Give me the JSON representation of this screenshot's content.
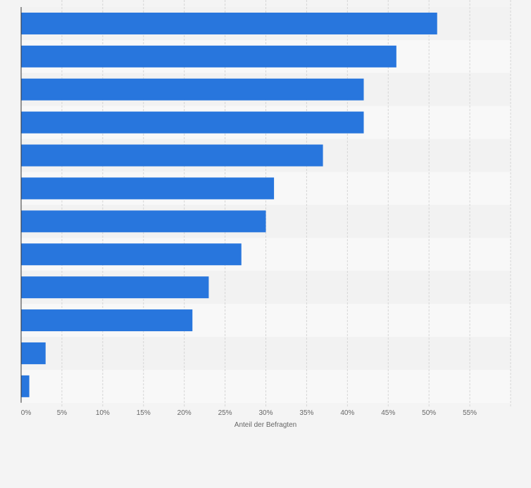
{
  "chart_data": {
    "type": "bar",
    "orientation": "horizontal",
    "categories": [
      "",
      "",
      "",
      "",
      "",
      "",
      "",
      "",
      "",
      "",
      "",
      ""
    ],
    "values": [
      51,
      46,
      42,
      42,
      37,
      31,
      30,
      27,
      23,
      21,
      3,
      1
    ],
    "xlabel": "Anteil der Befragten",
    "xlim": [
      0,
      60
    ],
    "xticks": [
      {
        "value": 0,
        "label": "0%"
      },
      {
        "value": 5,
        "label": "5%"
      },
      {
        "value": 10,
        "label": "10%"
      },
      {
        "value": 15,
        "label": "15%"
      },
      {
        "value": 20,
        "label": "20%"
      },
      {
        "value": 25,
        "label": "25%"
      },
      {
        "value": 30,
        "label": "30%"
      },
      {
        "value": 35,
        "label": "35%"
      },
      {
        "value": 40,
        "label": "40%"
      },
      {
        "value": 45,
        "label": "45%"
      },
      {
        "value": 50,
        "label": "50%"
      },
      {
        "value": 55,
        "label": "55%"
      }
    ],
    "grid": true,
    "bar_color": "#2876dd",
    "band_colors": [
      "#f2f2f2",
      "#f8f8f8"
    ],
    "grid_color": "#d6d6d6",
    "axis_color": "#333333",
    "tick_label_color": "#666666"
  }
}
